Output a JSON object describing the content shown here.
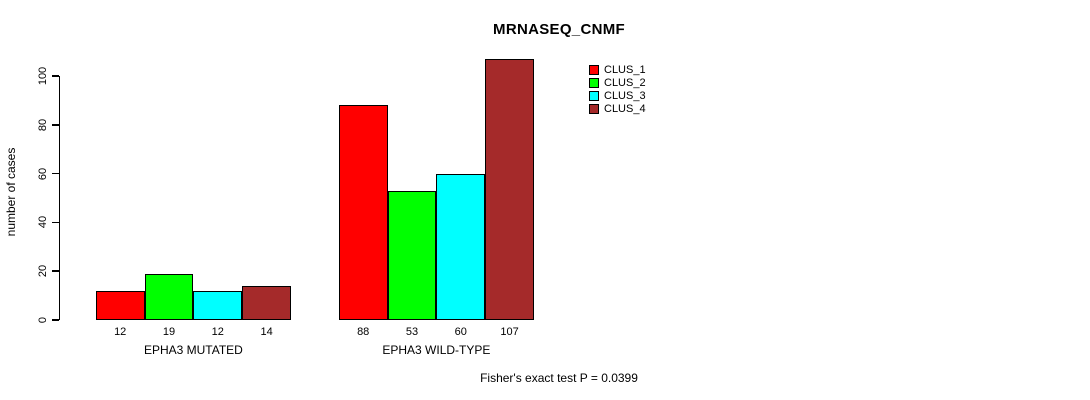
{
  "chart_data": {
    "type": "bar",
    "title": "MRNASEQ_CNMF",
    "ylabel": "number of cases",
    "xlabel": "",
    "ylim": [
      0,
      100
    ],
    "yticks": [
      0,
      20,
      40,
      60,
      80,
      100
    ],
    "grid": false,
    "categories": [
      "EPHA3 MUTATED",
      "EPHA3 WILD-TYPE"
    ],
    "series": [
      {
        "name": "CLUS_1",
        "color": "#ff0000",
        "values": [
          12,
          88
        ]
      },
      {
        "name": "CLUS_2",
        "color": "#00ff00",
        "values": [
          19,
          53
        ]
      },
      {
        "name": "CLUS_3",
        "color": "#00ffff",
        "values": [
          12,
          60
        ]
      },
      {
        "name": "CLUS_4",
        "color": "#a52a2a",
        "values": [
          14,
          107
        ]
      }
    ],
    "bar_value_labels_shown": true,
    "legend": {
      "position": "top-right",
      "entries": [
        "CLUS_1",
        "CLUS_2",
        "CLUS_3",
        "CLUS_4"
      ]
    },
    "annotation": "Fisher's exact test P = 0.0399"
  }
}
